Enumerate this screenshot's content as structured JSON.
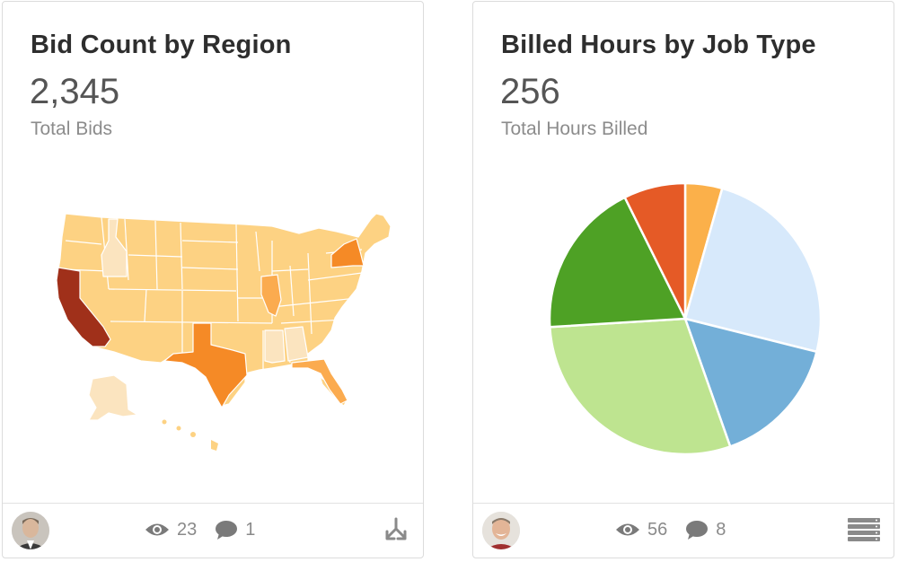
{
  "cards": [
    {
      "title": "Bid Count by Region",
      "value": "2,345",
      "subtitle": "Total Bids",
      "views": "23",
      "comments": "1",
      "action_icon": "merge-arrows-icon",
      "chart_data": {
        "type": "choropleth-map",
        "region": "United States",
        "highlighted": [
          {
            "state": "California",
            "level": "highest",
            "color": "#a0301a"
          },
          {
            "state": "Texas",
            "level": "high",
            "color": "#f58a26"
          },
          {
            "state": "New York",
            "level": "high",
            "color": "#f58a26"
          },
          {
            "state": "Florida",
            "level": "medium",
            "color": "#fbab4f"
          },
          {
            "state": "Illinois",
            "level": "medium",
            "color": "#fbab4f"
          },
          {
            "state": "Idaho",
            "level": "low",
            "color": "#fbe4bf"
          },
          {
            "state": "Mississippi",
            "level": "low",
            "color": "#fbe4bf"
          },
          {
            "state": "Alabama",
            "level": "low",
            "color": "#fbe4bf"
          },
          {
            "state": "Alaska",
            "level": "low",
            "color": "#fbe4bf"
          }
        ],
        "default_color": "#fdd283"
      }
    },
    {
      "title": "Billed Hours by Job Type",
      "value": "256",
      "subtitle": "Total Hours Billed",
      "views": "56",
      "comments": "8",
      "action_icon": "table-rows-icon",
      "chart_data": {
        "type": "pie",
        "values": [
          4.5,
          25,
          16,
          30,
          19,
          7.5
        ],
        "colors": [
          "#fbb04a",
          "#d7e9fb",
          "#73afd8",
          "#bee490",
          "#4ea125",
          "#e55a26"
        ]
      }
    }
  ]
}
